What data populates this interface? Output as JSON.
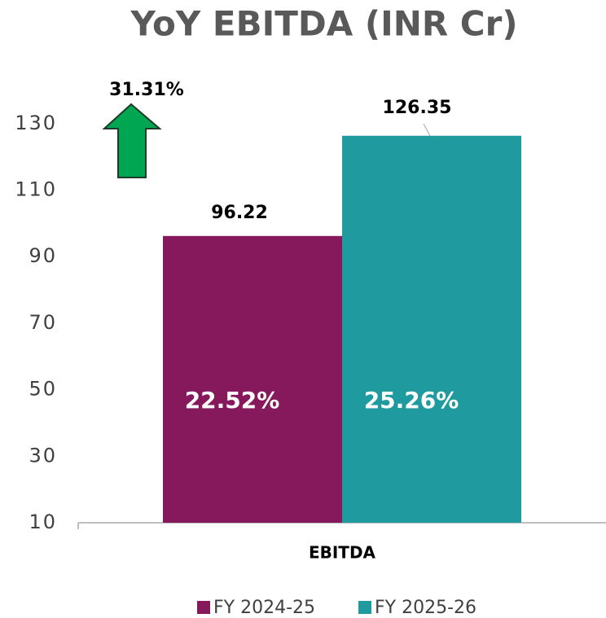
{
  "chart_data": {
    "type": "bar",
    "title": "YoY EBITDA (INR Cr)",
    "categories": [
      "EBITDA"
    ],
    "series": [
      {
        "name": "FY 2024-25",
        "color": "#86185c",
        "values": [
          96.22
        ],
        "inner_labels": [
          "22.52%"
        ]
      },
      {
        "name": "FY 2025-26",
        "color": "#1f9ba0",
        "values": [
          126.35
        ],
        "inner_labels": [
          "25.26%"
        ]
      }
    ],
    "growth_annotation": "31.31%",
    "ylim": [
      10,
      140
    ],
    "yticks": [
      10,
      30,
      50,
      70,
      90,
      110,
      130
    ],
    "grid": false,
    "legend": "bottom"
  }
}
